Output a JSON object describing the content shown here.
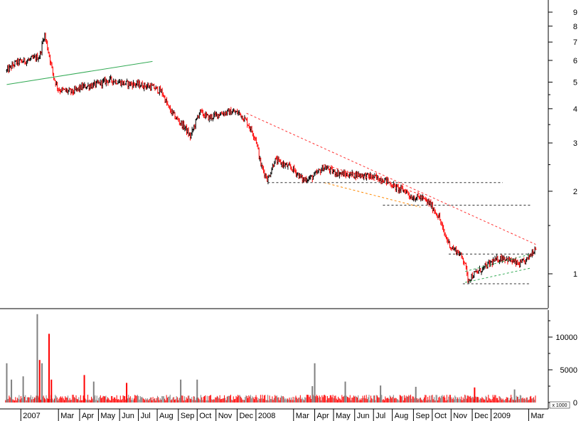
{
  "chart_data": {
    "type": "candlestick-with-volume",
    "price_panel": {
      "y_scale": "log",
      "ylim": [
        0.8,
        10.5
      ],
      "y_ticks": [
        1,
        2,
        3,
        4,
        5,
        6,
        7,
        8,
        9
      ],
      "y_tick_labels": [
        "1",
        "2",
        "3",
        "4",
        "5",
        "6",
        "7",
        "8",
        "9"
      ],
      "up_color": "#000000",
      "down_color": "#ff0000",
      "anchors": [
        [
          2006.94,
          5.5
        ],
        [
          2006.98,
          5.9
        ],
        [
          2007.03,
          6.0
        ],
        [
          2007.08,
          6.2
        ],
        [
          2007.1,
          7.5
        ],
        [
          2007.12,
          6.3
        ],
        [
          2007.14,
          5.2
        ],
        [
          2007.16,
          4.7
        ],
        [
          2007.22,
          4.6
        ],
        [
          2007.26,
          4.8
        ],
        [
          2007.32,
          4.9
        ],
        [
          2007.38,
          5.1
        ],
        [
          2007.44,
          4.95
        ],
        [
          2007.5,
          4.9
        ],
        [
          2007.56,
          4.8
        ],
        [
          2007.6,
          4.6
        ],
        [
          2007.63,
          4.0
        ],
        [
          2007.66,
          3.7
        ],
        [
          2007.7,
          3.4
        ],
        [
          2007.72,
          3.15
        ],
        [
          2007.76,
          3.9
        ],
        [
          2007.8,
          3.7
        ],
        [
          2007.85,
          3.85
        ],
        [
          2007.9,
          3.9
        ],
        [
          2007.93,
          3.85
        ],
        [
          2007.96,
          3.6
        ],
        [
          2008.0,
          3.1
        ],
        [
          2008.02,
          2.5
        ],
        [
          2008.05,
          2.2
        ],
        [
          2008.08,
          2.6
        ],
        [
          2008.12,
          2.5
        ],
        [
          2008.16,
          2.4
        ],
        [
          2008.2,
          2.2
        ],
        [
          2008.24,
          2.25
        ],
        [
          2008.29,
          2.45
        ],
        [
          2008.33,
          2.35
        ],
        [
          2008.38,
          2.3
        ],
        [
          2008.44,
          2.3
        ],
        [
          2008.5,
          2.25
        ],
        [
          2008.55,
          2.2
        ],
        [
          2008.6,
          2.05
        ],
        [
          2008.64,
          2.0
        ],
        [
          2008.66,
          1.9
        ],
        [
          2008.7,
          1.9
        ],
        [
          2008.74,
          1.8
        ],
        [
          2008.78,
          1.6
        ],
        [
          2008.8,
          1.4
        ],
        [
          2008.83,
          1.25
        ],
        [
          2008.86,
          1.2
        ],
        [
          2008.89,
          1.1
        ],
        [
          2008.9,
          0.95
        ],
        [
          2008.93,
          1.0
        ],
        [
          2008.97,
          1.05
        ],
        [
          2009.0,
          1.1
        ],
        [
          2009.05,
          1.15
        ],
        [
          2009.08,
          1.12
        ],
        [
          2009.12,
          1.08
        ],
        [
          2009.15,
          1.12
        ],
        [
          2009.19,
          1.25
        ]
      ],
      "trendlines": [
        {
          "style": "solid",
          "color": "#33aa55",
          "points": [
            [
              2006.94,
              4.9
            ],
            [
              2007.56,
              5.95
            ]
          ]
        },
        {
          "style": "dashed",
          "color": "#ff3333",
          "points": [
            [
              2007.96,
              3.85
            ],
            [
              2009.19,
              1.28
            ]
          ]
        },
        {
          "style": "dashed",
          "color": "#ff3333",
          "points": [
            [
              2008.29,
              2.5
            ],
            [
              2008.7,
              1.95
            ]
          ]
        },
        {
          "style": "dashed",
          "color": "#ff8800",
          "points": [
            [
              2008.29,
              2.15
            ],
            [
              2008.7,
              1.75
            ]
          ]
        },
        {
          "style": "dashed",
          "color": "#333333",
          "points": [
            [
              2008.05,
              2.15
            ],
            [
              2009.05,
              2.15
            ]
          ]
        },
        {
          "style": "dashed",
          "color": "#333333",
          "points": [
            [
              2008.54,
              1.78
            ],
            [
              2009.17,
              1.78
            ]
          ]
        },
        {
          "style": "dashed",
          "color": "#333333",
          "points": [
            [
              2008.82,
              1.18
            ],
            [
              2009.17,
              1.18
            ]
          ]
        },
        {
          "style": "dashed",
          "color": "#333333",
          "points": [
            [
              2008.88,
              0.92
            ],
            [
              2009.17,
              0.92
            ]
          ]
        },
        {
          "style": "dashed",
          "color": "#33aa55",
          "points": [
            [
              2008.89,
              0.93
            ],
            [
              2009.17,
              1.05
            ]
          ]
        },
        {
          "style": "dashed",
          "color": "#33aa55",
          "points": [
            [
              2008.89,
              1.02
            ],
            [
              2009.17,
              1.18
            ]
          ]
        }
      ]
    },
    "volume_panel": {
      "ylim": [
        0,
        14000
      ],
      "y_ticks": [
        0,
        5000,
        10000
      ],
      "y_tick_labels": [
        "0",
        "5000",
        "10000"
      ],
      "multiplier_label": "x 1000",
      "spikes": [
        [
          2006.94,
          6000,
          "gray"
        ],
        [
          2006.96,
          3500,
          "gray"
        ],
        [
          2007.01,
          4000,
          "gray"
        ],
        [
          2007.07,
          13500,
          "gray"
        ],
        [
          2007.08,
          6500,
          "red"
        ],
        [
          2007.09,
          6000,
          "gray"
        ],
        [
          2007.12,
          10500,
          "red"
        ],
        [
          2007.13,
          3500,
          "red"
        ],
        [
          2007.27,
          4200,
          "red"
        ],
        [
          2007.31,
          3200,
          "gray"
        ],
        [
          2007.45,
          3000,
          "red"
        ],
        [
          2007.68,
          3500,
          "gray"
        ],
        [
          2007.75,
          3500,
          "gray"
        ],
        [
          2008.24,
          2500,
          "gray"
        ],
        [
          2008.25,
          6000,
          "gray"
        ],
        [
          2008.38,
          3200,
          "gray"
        ],
        [
          2008.53,
          2600,
          "gray"
        ],
        [
          2008.68,
          2400,
          "gray"
        ],
        [
          2008.93,
          2300,
          "red"
        ],
        [
          2009.1,
          2000,
          "gray"
        ]
      ]
    },
    "x_axis": {
      "labels": [
        "2007",
        "Mar",
        "Apr",
        "May",
        "Jun",
        "Jul",
        "Aug",
        "Sep",
        "Oct",
        "Nov",
        "Dec",
        "2008",
        "Mar",
        "Apr",
        "May",
        "Jun",
        "Jul",
        "Aug",
        "Sep",
        "Oct",
        "Nov",
        "Dec",
        "2009",
        "Mar"
      ],
      "positions": [
        2007.0,
        2007.16,
        2007.25,
        2007.33,
        2007.42,
        2007.5,
        2007.58,
        2007.67,
        2007.75,
        2007.83,
        2007.92,
        2008.0,
        2008.16,
        2008.25,
        2008.33,
        2008.42,
        2008.5,
        2008.58,
        2008.67,
        2008.75,
        2008.83,
        2008.92,
        2009.0,
        2009.16
      ]
    }
  }
}
